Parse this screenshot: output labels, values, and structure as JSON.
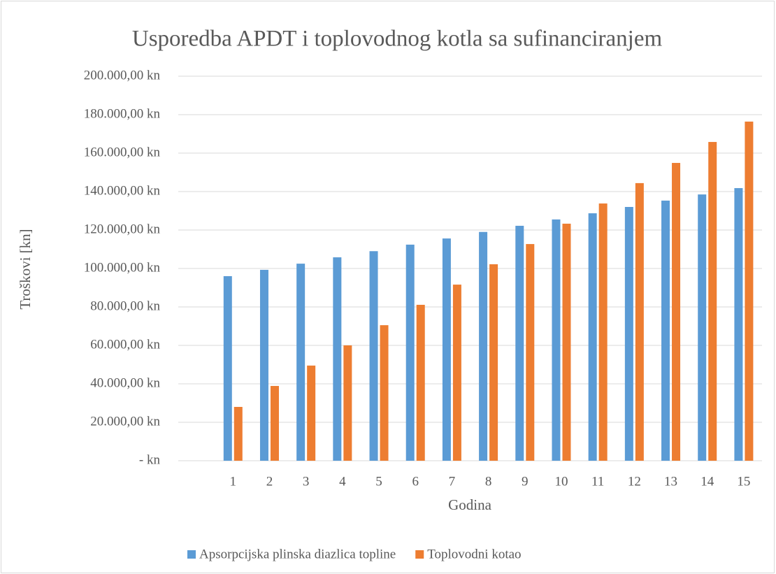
{
  "chart_data": {
    "type": "bar",
    "title": "Usporedba APDT i toplovodnog kotla sa sufinanciranjem",
    "x_label": "Godina",
    "y_label": "Troškovi [kn]",
    "categories": [
      null,
      "1",
      "2",
      "3",
      "4",
      "5",
      "6",
      "7",
      "8",
      "9",
      "10",
      "11",
      "12",
      "13",
      "14",
      "15"
    ],
    "series": [
      {
        "name": "Apsorpcijska plinska diazlica topline",
        "color": "#5b9bd5",
        "values": [
          null,
          96000,
          99300,
          102500,
          105800,
          109000,
          112400,
          115600,
          119000,
          122200,
          125500,
          128700,
          132000,
          135300,
          138500,
          141800
        ]
      },
      {
        "name": "Toplovodni kotao",
        "color": "#ed7d31",
        "values": [
          null,
          28000,
          38900,
          49500,
          60000,
          70500,
          81100,
          91600,
          102200,
          112700,
          123300,
          133800,
          144400,
          154900,
          165800,
          176400
        ]
      }
    ],
    "ylim": [
      0,
      200000
    ],
    "yticks": [
      {
        "value": 0,
        "label": "-   kn"
      },
      {
        "value": 20000,
        "label": "20.000,00 kn"
      },
      {
        "value": 40000,
        "label": "40.000,00 kn"
      },
      {
        "value": 60000,
        "label": "60.000,00 kn"
      },
      {
        "value": 80000,
        "label": "80.000,00 kn"
      },
      {
        "value": 100000,
        "label": "100.000,00 kn"
      },
      {
        "value": 120000,
        "label": "120.000,00 kn"
      },
      {
        "value": 140000,
        "label": "140.000,00 kn"
      },
      {
        "value": 160000,
        "label": "160.000,00 kn"
      },
      {
        "value": 180000,
        "label": "180.000,00 kn"
      },
      {
        "value": 200000,
        "label": "200.000,00 kn"
      }
    ],
    "grid": true,
    "legend": "bottom"
  }
}
